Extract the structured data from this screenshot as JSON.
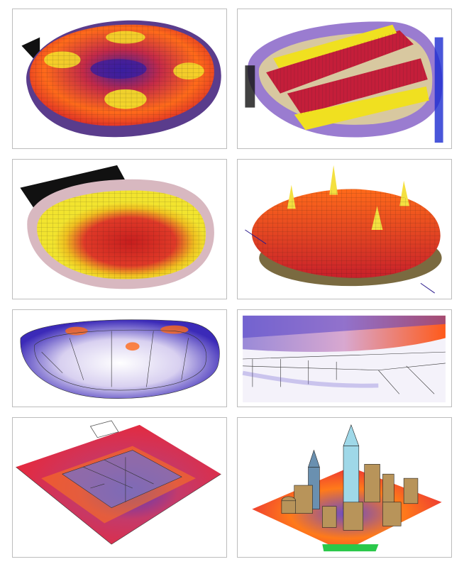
{
  "gallery": {
    "tiles": [
      {
        "name": "stadium-bowl-top-view",
        "palette": [
          "#2a1a8c",
          "#d8232a",
          "#ff7a1a",
          "#f4e22a"
        ]
      },
      {
        "name": "stadium-seating-sections",
        "palette": [
          "#1c2cd1",
          "#c41e3a",
          "#f0e020",
          "#9a7cd0"
        ]
      },
      {
        "name": "stadium-bowl-yellow-red",
        "palette": [
          "#f2e42e",
          "#e8a020",
          "#d02a2a"
        ]
      },
      {
        "name": "stadium-peaks-surface",
        "palette": [
          "#c8202a",
          "#ff6a1a",
          "#f4e040",
          "#2a1a8c"
        ]
      },
      {
        "name": "stadium-wireframe-exterior",
        "palette": [
          "#3b2ab8",
          "#ffffff",
          "#ff6a1a"
        ]
      },
      {
        "name": "stadium-interior-perspective",
        "palette": [
          "#4b3cc8",
          "#e8b0d8",
          "#ff5a1a"
        ]
      },
      {
        "name": "building-floorplan-field",
        "palette": [
          "#e8283a",
          "#ff7a1a",
          "#4b3cc8"
        ]
      },
      {
        "name": "city-block-towers",
        "palette": [
          "#e8283a",
          "#ff7a1a",
          "#4b3cc8",
          "#b8945a",
          "#9fd8e8"
        ]
      }
    ]
  }
}
